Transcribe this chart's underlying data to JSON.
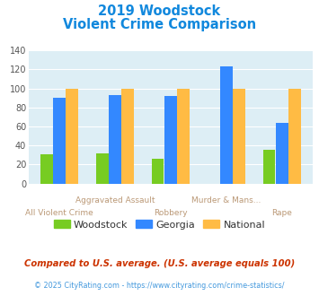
{
  "title_line1": "2019 Woodstock",
  "title_line2": "Violent Crime Comparison",
  "woodstock": [
    31,
    32,
    26,
    0,
    35
  ],
  "georgia": [
    90,
    93,
    92,
    123,
    64
  ],
  "national": [
    100,
    100,
    100,
    100,
    100
  ],
  "woodstock_color": "#77cc22",
  "georgia_color": "#3388ff",
  "national_color": "#ffbb44",
  "bg_color": "#ddeef5",
  "title_color": "#1188dd",
  "xlabel_color_top": "#bb9977",
  "xlabel_color_bot": "#bb9977",
  "ylim": [
    0,
    140
  ],
  "yticks": [
    0,
    20,
    40,
    60,
    80,
    100,
    120,
    140
  ],
  "footnote1": "Compared to U.S. average. (U.S. average equals 100)",
  "footnote2": "© 2025 CityRating.com - https://www.cityrating.com/crime-statistics/",
  "footnote1_color": "#cc3300",
  "footnote2_color": "#4499dd",
  "legend_labels": [
    "Woodstock",
    "Georgia",
    "National"
  ],
  "legend_text_color": "#333333",
  "line1_labels": [
    "",
    "Aggravated Assault",
    "",
    "Murder & Mans...",
    ""
  ],
  "line2_labels": [
    "All Violent Crime",
    "",
    "Robbery",
    "",
    "Rape"
  ]
}
